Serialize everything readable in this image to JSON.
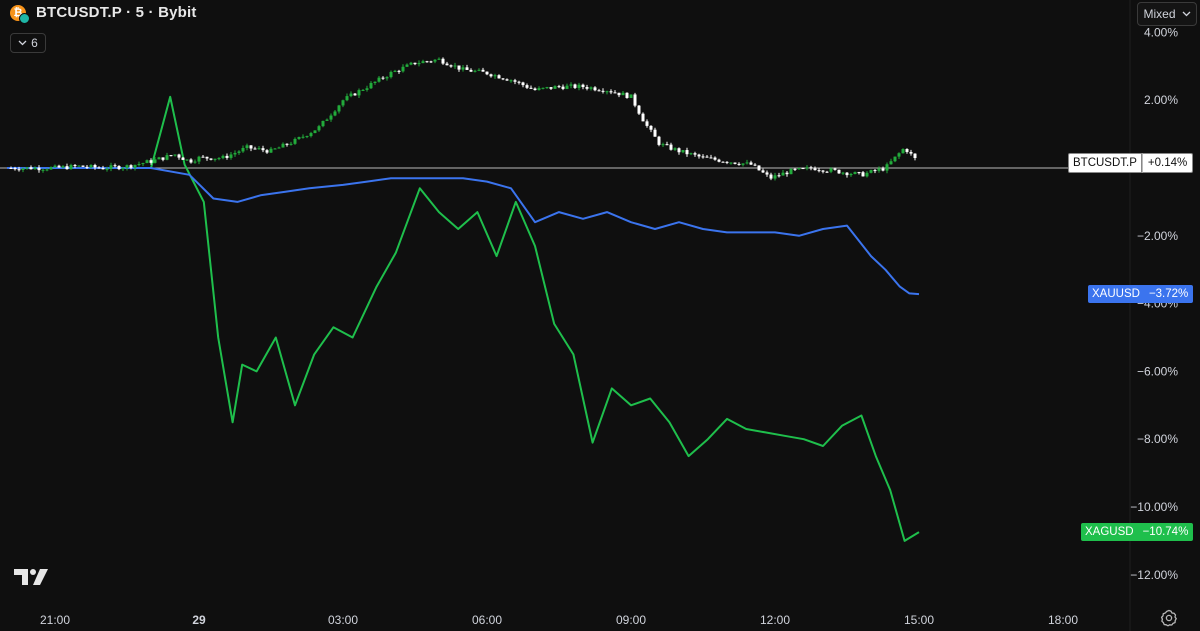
{
  "header": {
    "title": "BTCUSDT.P · 5 · Bybit",
    "indicator_count": "6",
    "scale_mode": "Mixed"
  },
  "icons": {
    "coin": "bitcoin-icon",
    "collapse": "chevron-down-icon",
    "dropdown": "chevron-down-icon",
    "logo": "tradingview-logo",
    "settings": "gear-icon"
  },
  "colors": {
    "background": "#0f0f0f",
    "btc_up": "#22ab3b",
    "btc_down": "#ffffff",
    "xau": "#3b74ee",
    "xag": "#1fbf4c",
    "baseline": "#b8b8b8"
  },
  "chart_data": {
    "type": "line",
    "y_unit": "%",
    "ylim": [
      -12.6,
      4.1
    ],
    "y_ticks": [
      "4.00%",
      "2.00%",
      "−2.00%",
      "−4.00%",
      "−6.00%",
      "−8.00%",
      "−10.00%",
      "−12.00%"
    ],
    "y_tick_values": [
      4,
      2,
      -2,
      -4,
      -6,
      -8,
      -10,
      -12
    ],
    "x_ticks": [
      "21:00",
      "29",
      "03:00",
      "06:00",
      "09:00",
      "12:00",
      "15:00",
      "18:00"
    ],
    "x_tick_hours": [
      21,
      24,
      27,
      30,
      33,
      36,
      39,
      42
    ],
    "xlim_hours": [
      20,
      44.5
    ],
    "grid": false,
    "series": [
      {
        "name": "BTCUSDT.P",
        "style": "candlestick",
        "last_label": "+0.14%",
        "x_hours": [
          20.0,
          20.5,
          21.0,
          21.5,
          22.0,
          22.5,
          23.0,
          23.5,
          23.8,
          24.0,
          24.5,
          25.0,
          25.5,
          26.0,
          26.5,
          27.0,
          27.5,
          28.0,
          28.5,
          29.0,
          29.5,
          30.0,
          30.5,
          31.0,
          31.5,
          32.0,
          32.5,
          33.0,
          33.3,
          33.6,
          34.0,
          34.5,
          35.0,
          35.5,
          35.9,
          36.3,
          36.8,
          37.3,
          37.8,
          38.3,
          38.7,
          39.0
        ],
        "values": [
          0.0,
          0.0,
          0.0,
          0.05,
          0.0,
          0.05,
          0.2,
          0.4,
          0.2,
          0.3,
          0.3,
          0.6,
          0.5,
          0.8,
          1.2,
          2.0,
          2.4,
          2.8,
          3.1,
          3.2,
          2.9,
          2.8,
          2.6,
          2.3,
          2.4,
          2.4,
          2.3,
          2.1,
          1.3,
          0.7,
          0.5,
          0.3,
          0.2,
          0.1,
          -0.3,
          -0.1,
          0.0,
          -0.1,
          -0.2,
          0.0,
          0.6,
          0.14
        ]
      },
      {
        "name": "XAUUSD",
        "style": "line",
        "last_label": "−3.72%",
        "x_hours": [
          20.0,
          21.0,
          22.0,
          23.0,
          23.8,
          24.3,
          24.8,
          25.3,
          25.8,
          26.3,
          27.0,
          27.5,
          28.0,
          28.5,
          29.0,
          29.5,
          30.0,
          30.5,
          31.0,
          31.5,
          32.0,
          32.5,
          33.0,
          33.5,
          34.0,
          34.5,
          35.0,
          35.5,
          36.0,
          36.5,
          37.0,
          37.5,
          38.0,
          38.3,
          38.6,
          38.8,
          39.0
        ],
        "values": [
          0.0,
          0.0,
          0.0,
          0.0,
          -0.2,
          -0.9,
          -1.0,
          -0.8,
          -0.7,
          -0.6,
          -0.5,
          -0.4,
          -0.3,
          -0.3,
          -0.3,
          -0.3,
          -0.4,
          -0.6,
          -1.6,
          -1.3,
          -1.5,
          -1.3,
          -1.6,
          -1.8,
          -1.6,
          -1.8,
          -1.9,
          -1.9,
          -1.9,
          -2.0,
          -1.8,
          -1.7,
          -2.6,
          -3.0,
          -3.5,
          -3.7,
          -3.72
        ]
      },
      {
        "name": "XAGUSD",
        "style": "line",
        "last_label": "−10.74%",
        "x_hours": [
          20.0,
          21.0,
          22.0,
          23.0,
          23.4,
          23.7,
          24.1,
          24.4,
          24.7,
          24.9,
          25.2,
          25.6,
          26.0,
          26.4,
          26.8,
          27.2,
          27.7,
          28.1,
          28.6,
          29.0,
          29.4,
          29.8,
          30.2,
          30.6,
          31.0,
          31.4,
          31.8,
          32.2,
          32.6,
          33.0,
          33.4,
          33.8,
          34.2,
          34.6,
          35.0,
          35.4,
          35.8,
          36.2,
          36.6,
          37.0,
          37.4,
          37.8,
          38.1,
          38.4,
          38.7,
          39.0
        ],
        "values": [
          0.0,
          0.0,
          0.0,
          0.0,
          2.1,
          0.1,
          -1.0,
          -5.0,
          -7.5,
          -5.8,
          -6.0,
          -5.0,
          -7.0,
          -5.5,
          -4.7,
          -5.0,
          -3.5,
          -2.5,
          -0.6,
          -1.3,
          -1.8,
          -1.3,
          -2.6,
          -1.0,
          -2.3,
          -4.6,
          -5.5,
          -8.1,
          -6.5,
          -7.0,
          -6.8,
          -7.5,
          -8.5,
          -8.0,
          -7.4,
          -7.7,
          -7.8,
          -7.9,
          -8.0,
          -8.2,
          -7.6,
          -7.3,
          -8.5,
          -9.5,
          -11.0,
          -10.74
        ]
      }
    ]
  }
}
